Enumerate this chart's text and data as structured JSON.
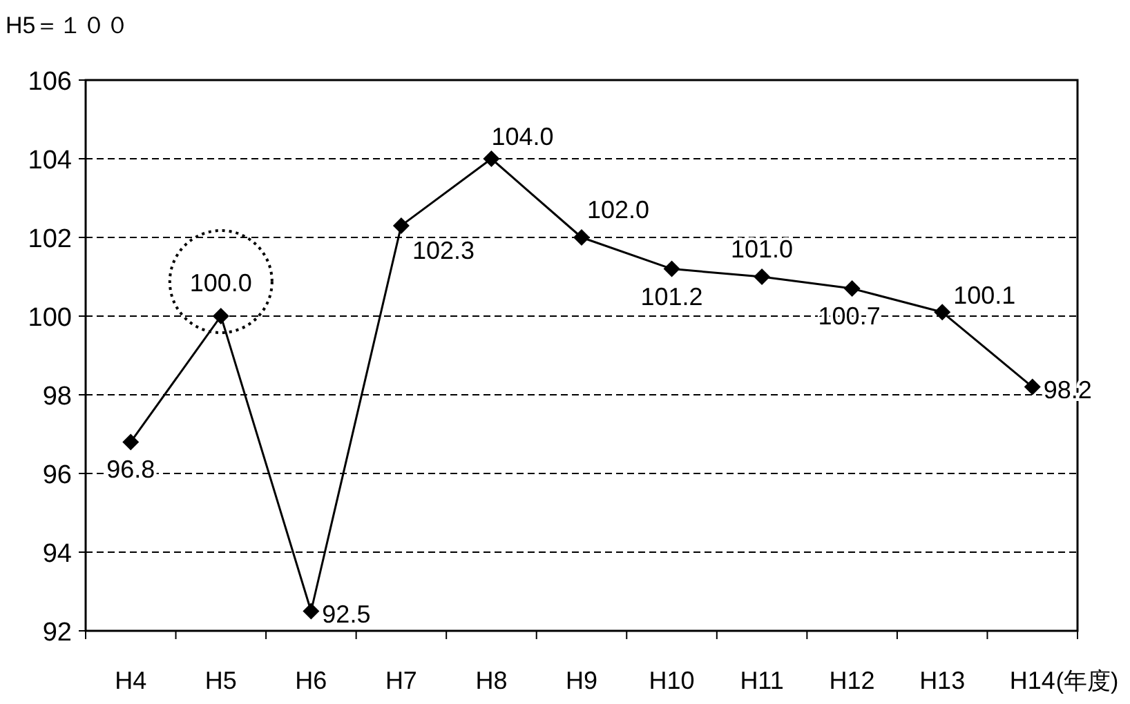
{
  "chart_data": {
    "type": "line",
    "ylabel": "H5＝１００",
    "xlabel": "(年度)",
    "categories": [
      "H4",
      "H5",
      "H6",
      "H7",
      "H8",
      "H9",
      "H10",
      "H11",
      "H12",
      "H13",
      "H14"
    ],
    "series": [
      {
        "color": "#000000",
        "values": [
          96.8,
          100.0,
          92.5,
          102.3,
          104.0,
          102.0,
          101.2,
          101.0,
          100.7,
          100.1,
          98.2
        ]
      }
    ],
    "value_labels": [
      "96.8",
      "100.0",
      "92.5",
      "102.3",
      "104.0",
      "102.0",
      "101.2",
      "101.0",
      "100.7",
      "100.1",
      "98.2"
    ],
    "ylim": [
      92,
      106
    ],
    "yticks": [
      92,
      94,
      96,
      98,
      100,
      102,
      104,
      106
    ],
    "grid": "y",
    "marker": "diamond",
    "line_style": "solid"
  }
}
